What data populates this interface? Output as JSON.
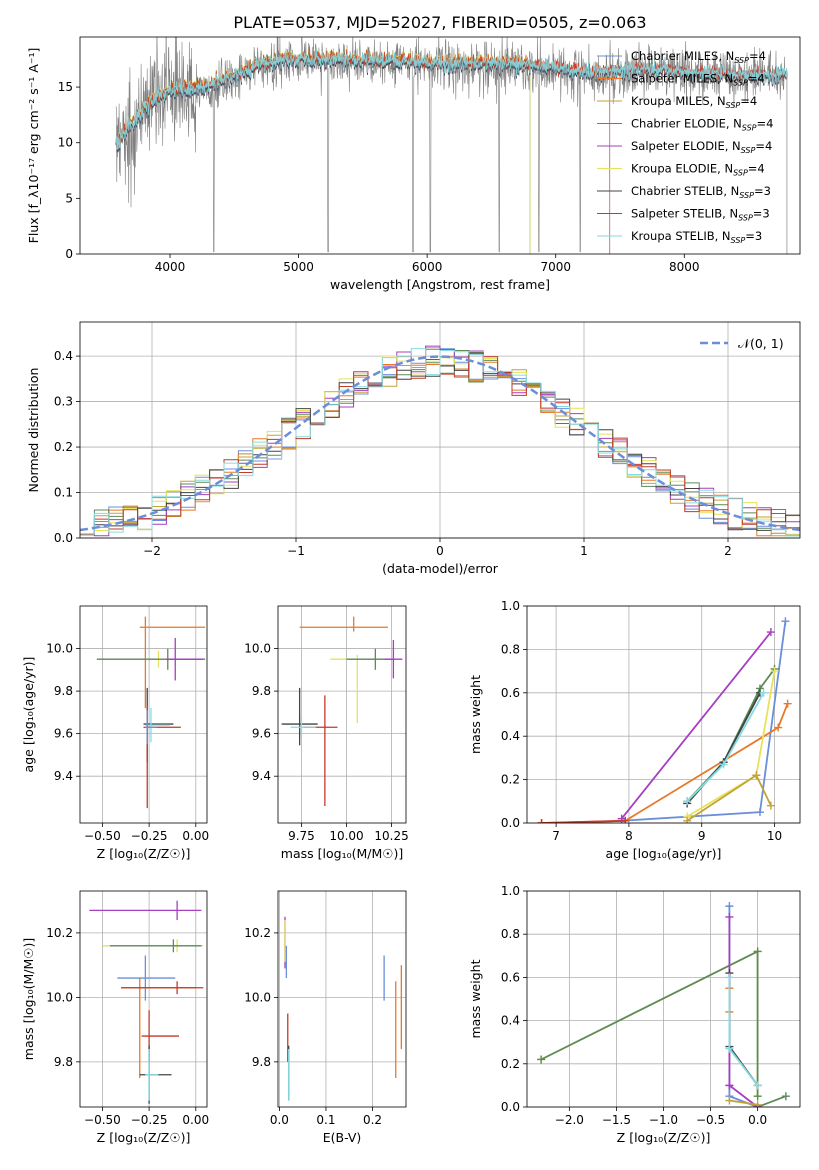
{
  "title": "PLATE=0537, MJD=52027, FIBERID=0505, z=0.063",
  "series_colors": [
    "#6a8fd8",
    "#e8782a",
    "#c2a338",
    "#5d8a57",
    "#a53fbf",
    "#e6e25a",
    "#444444",
    "#c23a2a",
    "#86dbe2"
  ],
  "chart_data": [
    {
      "id": "spectrum",
      "type": "line",
      "xlabel": "wavelength [Angstrom, rest frame]",
      "ylabel": "Flux [f_λ10⁻¹⁷ erg cm⁻² s⁻¹ A⁻¹]",
      "xlim": [
        3300,
        8900
      ],
      "ylim": [
        0,
        19.5
      ],
      "xticks": [
        4000,
        5000,
        6000,
        7000,
        8000
      ],
      "yticks": [
        0,
        5,
        10,
        15
      ],
      "legend_position": "top-right",
      "legend": [
        "Chabrier MILES, N_SSP=4",
        "Salpeter MILES, N_SSP=4",
        "Kroupa MILES, N_SSP=4",
        "Chabrier ELODIE, N_SSP=4",
        "Salpeter ELODIE, N_SSP=4",
        "Kroupa ELODIE, N_SSP=4",
        "Chabrier STELIB, N_SSP=3",
        "Salpeter STELIB, N_SSP=3",
        "Kroupa STELIB, N_SSP=3"
      ],
      "continuum": {
        "x": [
          3580,
          3700,
          3850,
          3950,
          4100,
          4300,
          4500,
          4700,
          4900,
          5100,
          5300,
          5600,
          5900,
          6200,
          6500,
          6800,
          7000,
          7200,
          7400,
          7700,
          8000,
          8300,
          8600
        ],
        "y": [
          9.5,
          11.5,
          13.5,
          14.3,
          14.6,
          15.0,
          15.8,
          16.8,
          17.3,
          17.4,
          17.3,
          17.2,
          17.1,
          16.9,
          17.0,
          16.8,
          16.6,
          16.2,
          16.2,
          16.5,
          16.2,
          16.0,
          15.9
        ]
      },
      "data_range": [
        3580,
        8800
      ],
      "model_cutoffs": [
        {
          "series": "Salpeter MILES, N_SSP=4",
          "end": 7420
        },
        {
          "series": "Chabrier MILES, N_SSP=4",
          "end": 7420
        },
        {
          "series": "Kroupa ELODIE, N_SSP=4",
          "end": 6800
        },
        {
          "series": "Chabrier ELODIE, N_SSP=4",
          "end": 6800
        }
      ]
    },
    {
      "id": "residuals",
      "type": "step",
      "xlabel": "(data-model)/error",
      "ylabel": "Normed distribution",
      "xlim": [
        -2.5,
        2.5
      ],
      "ylim": [
        0,
        0.475
      ],
      "xticks": [
        -2,
        -1,
        0,
        1,
        2
      ],
      "xtick_labels": [
        "−2",
        "−1",
        "0",
        "1",
        "2"
      ],
      "yticks": [
        0,
        0.1,
        0.2,
        0.3,
        0.4
      ],
      "ytick_labels": [
        "0.0",
        "0.1",
        "0.2",
        "0.3",
        "0.4"
      ],
      "grid": true,
      "legend": "𝒩(0, 1)",
      "legend_position": "top-right",
      "bin_width": 0.1,
      "reference_curve": {
        "type": "gaussian",
        "mean": 0,
        "sigma": 1
      }
    },
    {
      "id": "age_vs_Z",
      "type": "errorbar",
      "xlabel": "Z [log₁₀(Z/Z☉)]",
      "ylabel": "age  [log₁₀(age/yr)]",
      "xlim": [
        -0.62,
        0.06
      ],
      "ylim": [
        9.18,
        10.2
      ],
      "xticks": [
        -0.5,
        -0.25,
        0.0
      ],
      "xtick_labels": [
        "−0.50",
        "−0.25",
        "0.00"
      ],
      "yticks": [
        9.4,
        9.6,
        9.8,
        10.0
      ],
      "ytick_labels": [
        "9.4",
        "9.6",
        "9.8",
        "10.0"
      ],
      "grid": true,
      "points": [
        {
          "x": -0.27,
          "y": 10.1,
          "xerr": [
            0.03,
            0.32
          ],
          "yerr": [
            0.38,
            0.05
          ],
          "c": 1
        },
        {
          "x": -0.2,
          "y": 9.95,
          "xerr": [
            0.3,
            0.23
          ],
          "yerr": [
            0.04,
            0.04
          ],
          "c": 5
        },
        {
          "x": -0.15,
          "y": 9.95,
          "xerr": [
            0.38,
            0.2
          ],
          "yerr": [
            0.05,
            0.05
          ],
          "c": 3
        },
        {
          "x": -0.11,
          "y": 9.95,
          "xerr": [
            0.05,
            0.15
          ],
          "yerr": [
            0.1,
            0.1
          ],
          "c": 4
        },
        {
          "x": -0.26,
          "y": 9.645,
          "xerr": [
            0.02,
            0.14
          ],
          "yerr": [
            0.18,
            0.17
          ],
          "c": 6
        },
        {
          "x": -0.26,
          "y": 9.63,
          "xerr": [
            0.02,
            0.18
          ],
          "yerr": [
            0.38,
            0.1
          ],
          "c": 7
        },
        {
          "x": -0.24,
          "y": 9.64,
          "xerr": [
            0.03,
            0.1
          ],
          "yerr": [
            0.08,
            0.08
          ],
          "c": 8
        },
        {
          "x": -0.26,
          "y": 9.63,
          "xerr": [
            0.01,
            0.05
          ],
          "yerr": [
            0.08,
            0.08
          ],
          "c": 0
        }
      ]
    },
    {
      "id": "age_vs_mass",
      "type": "errorbar",
      "xlabel": "mass [log₁₀(M/M☉)]",
      "ylabel": "",
      "xlim": [
        9.62,
        10.33
      ],
      "ylim": [
        9.18,
        10.2
      ],
      "xticks": [
        9.75,
        10.0,
        10.25
      ],
      "xtick_labels": [
        "9.75",
        "10.00",
        "10.25"
      ],
      "yticks": [
        9.4,
        9.6,
        9.8,
        10.0
      ],
      "ytick_labels": [
        "9.4",
        "9.6",
        "9.8",
        "10.0"
      ],
      "grid": true,
      "points": [
        {
          "x": 10.04,
          "y": 10.1,
          "xerr": [
            0.3,
            0.19
          ],
          "yerr": [
            0.02,
            0.05
          ],
          "c": 1
        },
        {
          "x": 10.06,
          "y": 9.95,
          "xerr": [
            0.15,
            0.17
          ],
          "yerr": [
            0.3,
            0.02
          ],
          "c": 5
        },
        {
          "x": 10.16,
          "y": 9.95,
          "xerr": [
            0.16,
            0.1
          ],
          "yerr": [
            0.05,
            0.05
          ],
          "c": 3
        },
        {
          "x": 10.26,
          "y": 9.95,
          "xerr": [
            0.05,
            0.05
          ],
          "yerr": [
            0.09,
            0.09
          ],
          "c": 4
        },
        {
          "x": 9.74,
          "y": 9.645,
          "xerr": [
            0.1,
            0.1
          ],
          "yerr": [
            0.1,
            0.17
          ],
          "c": 6
        },
        {
          "x": 9.88,
          "y": 9.63,
          "xerr": [
            0.12,
            0.07
          ],
          "yerr": [
            0.37,
            0.15
          ],
          "c": 7
        },
        {
          "x": 9.75,
          "y": 9.63,
          "xerr": [
            0.06,
            0.08
          ],
          "yerr": [
            0.05,
            0.05
          ],
          "c": 8
        }
      ]
    },
    {
      "id": "weight_vs_age",
      "type": "line",
      "xlabel": "age  [log₁₀(age/yr)]",
      "ylabel": "mass weight",
      "xlim": [
        6.6,
        10.35
      ],
      "ylim": [
        0,
        1.0
      ],
      "xticks": [
        7,
        8,
        9,
        10
      ],
      "yticks": [
        0,
        0.2,
        0.4,
        0.6,
        0.8,
        1.0
      ],
      "ytick_labels": [
        "0.0",
        "0.2",
        "0.4",
        "0.6",
        "0.8",
        "1.0"
      ],
      "grid": true,
      "series": [
        {
          "c": 0,
          "x": [
            7.9,
            9.8,
            10.15
          ],
          "y": [
            0.01,
            0.05,
            0.93
          ]
        },
        {
          "c": 1,
          "x": [
            6.8,
            7.95,
            10.05,
            10.18
          ],
          "y": [
            0.0,
            0.01,
            0.44,
            0.55
          ]
        },
        {
          "c": 7,
          "x": [
            6.8,
            7.95
          ],
          "y": [
            0.0,
            0.01
          ]
        },
        {
          "c": 3,
          "x": [
            8.8,
            9.3,
            9.8,
            10.0
          ],
          "y": [
            0.1,
            0.28,
            0.62,
            0.71
          ]
        },
        {
          "c": 6,
          "x": [
            8.8,
            9.3,
            9.8
          ],
          "y": [
            0.09,
            0.28,
            0.6
          ]
        },
        {
          "c": 8,
          "x": [
            8.8,
            9.3,
            9.85
          ],
          "y": [
            0.1,
            0.27,
            0.6
          ]
        },
        {
          "c": 4,
          "x": [
            7.9,
            9.95
          ],
          "y": [
            0.02,
            0.88
          ]
        },
        {
          "c": 5,
          "x": [
            8.8,
            9.75,
            10.0
          ],
          "y": [
            0.03,
            0.22,
            0.7
          ]
        },
        {
          "c": 2,
          "x": [
            8.8,
            9.75,
            9.95
          ],
          "y": [
            0.01,
            0.22,
            0.08
          ]
        }
      ]
    },
    {
      "id": "mass_vs_Z",
      "type": "errorbar",
      "xlabel": "Z [log₁₀(Z/Z☉)]",
      "ylabel": "mass [log₁₀(M/M☉)]",
      "xlim": [
        -0.62,
        0.06
      ],
      "ylim": [
        9.66,
        10.33
      ],
      "xticks": [
        -0.5,
        -0.25,
        0.0
      ],
      "xtick_labels": [
        "−0.50",
        "−0.25",
        "0.00"
      ],
      "yticks": [
        9.8,
        10.0,
        10.2
      ],
      "ytick_labels": [
        "9.8",
        "10.0",
        "10.2"
      ],
      "grid": true,
      "points": [
        {
          "x": -0.1,
          "y": 10.27,
          "xerr": [
            0.47,
            0.13
          ],
          "yerr": [
            0.03,
            0.03
          ],
          "c": 4
        },
        {
          "x": -0.1,
          "y": 10.16,
          "xerr": [
            0.4,
            0.14
          ],
          "yerr": [
            0.02,
            0.02
          ],
          "c": 5
        },
        {
          "x": -0.12,
          "y": 10.16,
          "xerr": [
            0.34,
            0.15
          ],
          "yerr": [
            0.02,
            0.02
          ],
          "c": 3
        },
        {
          "x": -0.27,
          "y": 10.06,
          "xerr": [
            0.15,
            0.16
          ],
          "yerr": [
            0.07,
            0.07
          ],
          "c": 0
        },
        {
          "x": -0.3,
          "y": 10.03,
          "xerr": [
            0.1,
            0.3
          ],
          "yerr": [
            0.28,
            0.03
          ],
          "c": 1
        },
        {
          "x": -0.1,
          "y": 10.03,
          "xerr": [
            0.3,
            0.14
          ],
          "yerr": [
            0.02,
            0.02
          ],
          "c": 7
        },
        {
          "x": -0.25,
          "y": 9.88,
          "xerr": [
            0.04,
            0.16
          ],
          "yerr": [
            0.08,
            0.08
          ],
          "c": 7
        },
        {
          "x": -0.25,
          "y": 9.76,
          "xerr": [
            0.05,
            0.12
          ],
          "yerr": [
            0.09,
            0.09
          ],
          "c": 6
        },
        {
          "x": -0.25,
          "y": 9.76,
          "xerr": [
            0.02,
            0.05
          ],
          "yerr": [
            0.08,
            0.08
          ],
          "c": 8
        }
      ]
    },
    {
      "id": "mass_vs_ebv",
      "type": "errorbar",
      "xlabel": "E(B-V)",
      "ylabel": "",
      "xlim": [
        -0.003,
        0.272
      ],
      "ylim": [
        9.66,
        10.33
      ],
      "xticks": [
        0.0,
        0.1,
        0.2
      ],
      "xtick_labels": [
        "0.0",
        "0.1",
        "0.2"
      ],
      "yticks": [
        9.8,
        10.0,
        10.2
      ],
      "ytick_labels": [
        "9.8",
        "10.0",
        "10.2"
      ],
      "grid": true,
      "points": [
        {
          "x": 0.012,
          "y": 10.18,
          "xerr": [
            0,
            0
          ],
          "yerr": [
            0.09,
            0.07
          ],
          "c": 4
        },
        {
          "x": 0.012,
          "y": 10.18,
          "xerr": [
            0,
            0
          ],
          "yerr": [
            0.07,
            0.06
          ],
          "c": 5
        },
        {
          "x": 0.015,
          "y": 10.12,
          "xerr": [
            0,
            0
          ],
          "yerr": [
            0.06,
            0.04
          ],
          "c": 0
        },
        {
          "x": 0.018,
          "y": 9.88,
          "xerr": [
            0,
            0
          ],
          "yerr": [
            0.08,
            0.07
          ],
          "c": 7
        },
        {
          "x": 0.02,
          "y": 9.76,
          "xerr": [
            0,
            0
          ],
          "yerr": [
            0.08,
            0.09
          ],
          "c": 6
        },
        {
          "x": 0.02,
          "y": 9.76,
          "xerr": [
            0,
            0
          ],
          "yerr": [
            0.08,
            0.08
          ],
          "c": 8
        },
        {
          "x": 0.225,
          "y": 10.06,
          "xerr": [
            0,
            0
          ],
          "yerr": [
            0.07,
            0.07
          ],
          "c": 0
        },
        {
          "x": 0.25,
          "y": 9.93,
          "xerr": [
            0,
            0
          ],
          "yerr": [
            0.18,
            0.12
          ],
          "c": 1
        },
        {
          "x": 0.262,
          "y": 10.0,
          "xerr": [
            0,
            0
          ],
          "yerr": [
            0.16,
            0.1
          ],
          "c": 1
        }
      ]
    },
    {
      "id": "weight_vs_Z",
      "type": "line",
      "xlabel": "Z [log₁₀(Z/Z☉)]",
      "ylabel": "mass weight",
      "xlim": [
        -2.45,
        0.45
      ],
      "ylim": [
        0,
        1.0
      ],
      "xticks": [
        -2.0,
        -1.5,
        -1.0,
        -0.5,
        0.0
      ],
      "xtick_labels": [
        "−2.0",
        "−1.5",
        "−1.0",
        "−0.5",
        "0.0"
      ],
      "yticks": [
        0,
        0.2,
        0.4,
        0.6,
        0.8,
        1.0
      ],
      "ytick_labels": [
        "0.0",
        "0.2",
        "0.4",
        "0.6",
        "0.8",
        "1.0"
      ],
      "grid": true,
      "series": [
        {
          "c": 5,
          "x": [
            -2.3,
            0.0,
            0.0
          ],
          "y": [
            0.22,
            0.72,
            0.05
          ]
        },
        {
          "c": 3,
          "x": [
            -2.3,
            0.0,
            0.0
          ],
          "y": [
            0.22,
            0.72,
            0.05
          ]
        },
        {
          "c": 3,
          "x": [
            0.0,
            0.3
          ],
          "y": [
            0.0,
            0.05
          ]
        },
        {
          "c": 0,
          "x": [
            -0.3,
            -0.3,
            0.0
          ],
          "y": [
            0.93,
            0.05,
            0.0
          ]
        },
        {
          "c": 4,
          "x": [
            -0.3,
            -0.3
          ],
          "y": [
            0.88,
            0.1
          ]
        },
        {
          "c": 4,
          "x": [
            -0.3,
            0.0
          ],
          "y": [
            0.1,
            0.0
          ]
        },
        {
          "c": 1,
          "x": [
            -0.3,
            -0.3
          ],
          "y": [
            0.55,
            0.44
          ]
        },
        {
          "c": 6,
          "x": [
            -0.3,
            -0.3,
            0.0
          ],
          "y": [
            0.62,
            0.28,
            0.1
          ]
        },
        {
          "c": 8,
          "x": [
            -0.3,
            -0.3,
            0.0
          ],
          "y": [
            0.6,
            0.27,
            0.1
          ]
        },
        {
          "c": 2,
          "x": [
            -0.3,
            0.0
          ],
          "y": [
            0.03,
            0.01
          ]
        }
      ]
    }
  ]
}
